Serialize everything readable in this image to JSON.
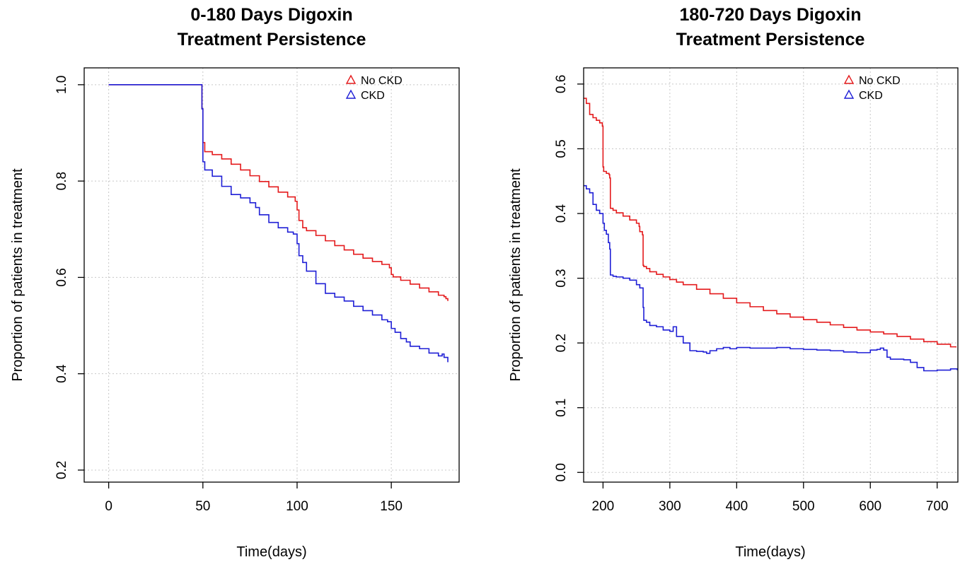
{
  "colors": {
    "no_ckd": "#e41a1c",
    "ckd": "#1f1fd6"
  },
  "chart_data": [
    {
      "type": "line",
      "title_line1": "0-180 Days Digoxin",
      "title_line2": "Treatment Persistence",
      "xlabel": "Time(days)",
      "ylabel": "Proportion of patients in treatment",
      "xlim": [
        -13,
        186
      ],
      "ylim": [
        0.175,
        1.035
      ],
      "xticks": [
        0,
        50,
        100,
        150
      ],
      "xtick_labels": [
        "0",
        "50",
        "100",
        "150"
      ],
      "yticks": [
        0.2,
        0.4,
        0.6,
        0.8,
        1.0
      ],
      "ytick_labels": [
        "0.2",
        "0.4",
        "0.6",
        "0.8",
        "1.0"
      ],
      "grid": true,
      "legend_position": "top-right",
      "legend_marker": "triangle",
      "series": [
        {
          "name": "No CKD",
          "color_key": "no_ckd",
          "x": [
            0,
            49,
            49.5,
            50,
            51,
            55,
            60,
            65,
            70,
            75,
            80,
            85,
            90,
            95,
            99,
            100,
            101,
            103,
            105,
            110,
            115,
            120,
            125,
            130,
            135,
            140,
            145,
            149,
            150,
            151,
            155,
            160,
            165,
            170,
            175,
            178,
            179,
            180
          ],
          "y": [
            1.0,
            1.0,
            0.95,
            0.88,
            0.861,
            0.855,
            0.846,
            0.835,
            0.823,
            0.811,
            0.799,
            0.788,
            0.777,
            0.767,
            0.758,
            0.74,
            0.718,
            0.703,
            0.697,
            0.687,
            0.676,
            0.666,
            0.657,
            0.648,
            0.64,
            0.633,
            0.627,
            0.62,
            0.606,
            0.601,
            0.594,
            0.586,
            0.578,
            0.57,
            0.563,
            0.56,
            0.556,
            0.551
          ]
        },
        {
          "name": "CKD",
          "color_key": "ckd",
          "x": [
            0,
            49,
            49.5,
            50,
            51,
            55,
            60,
            65,
            70,
            75,
            78,
            80,
            85,
            90,
            95,
            98,
            100,
            101,
            103,
            105,
            110,
            115,
            120,
            125,
            130,
            135,
            140,
            145,
            148,
            150,
            152,
            155,
            158,
            160,
            165,
            170,
            175,
            177,
            178,
            180
          ],
          "y": [
            1.0,
            1.0,
            0.95,
            0.84,
            0.823,
            0.81,
            0.789,
            0.772,
            0.765,
            0.755,
            0.745,
            0.73,
            0.714,
            0.703,
            0.694,
            0.69,
            0.67,
            0.645,
            0.631,
            0.613,
            0.587,
            0.567,
            0.559,
            0.551,
            0.54,
            0.531,
            0.522,
            0.512,
            0.508,
            0.494,
            0.486,
            0.473,
            0.466,
            0.457,
            0.452,
            0.443,
            0.437,
            0.441,
            0.434,
            0.424
          ]
        }
      ]
    },
    {
      "type": "line",
      "title_line1": "180-720 Days Digoxin",
      "title_line2": "Treatment Persistence",
      "xlabel": "Time(days)",
      "ylabel": "Proportion of patients in treatment",
      "xlim": [
        171,
        731
      ],
      "ylim": [
        -0.015,
        0.625
      ],
      "xticks": [
        200,
        300,
        400,
        500,
        600,
        700
      ],
      "xtick_labels": [
        "200",
        "300",
        "400",
        "500",
        "600",
        "700"
      ],
      "yticks": [
        0.0,
        0.1,
        0.2,
        0.3,
        0.4,
        0.5,
        0.6
      ],
      "ytick_labels": [
        "0.0",
        "0.1",
        "0.2",
        "0.3",
        "0.4",
        "0.5",
        "0.6"
      ],
      "grid": true,
      "legend_position": "top-right",
      "legend_marker": "triangle",
      "series": [
        {
          "name": "No CKD",
          "color_key": "no_ckd",
          "x": [
            171,
            175,
            180,
            185,
            190,
            195,
            199,
            200,
            201,
            205,
            209,
            210,
            211,
            215,
            220,
            230,
            240,
            250,
            254,
            255,
            259,
            260,
            261,
            265,
            270,
            280,
            290,
            300,
            310,
            320,
            340,
            360,
            380,
            400,
            420,
            440,
            460,
            480,
            500,
            520,
            540,
            560,
            580,
            600,
            620,
            640,
            660,
            680,
            700,
            720,
            728
          ],
          "y": [
            0.578,
            0.57,
            0.553,
            0.548,
            0.544,
            0.54,
            0.535,
            0.472,
            0.465,
            0.462,
            0.46,
            0.455,
            0.408,
            0.405,
            0.401,
            0.396,
            0.39,
            0.385,
            0.38,
            0.372,
            0.367,
            0.32,
            0.318,
            0.315,
            0.31,
            0.306,
            0.302,
            0.298,
            0.294,
            0.29,
            0.283,
            0.276,
            0.269,
            0.262,
            0.256,
            0.25,
            0.245,
            0.24,
            0.236,
            0.232,
            0.228,
            0.224,
            0.22,
            0.217,
            0.214,
            0.21,
            0.206,
            0.202,
            0.198,
            0.194,
            0.193
          ]
        },
        {
          "name": "CKD",
          "color_key": "ckd",
          "x": [
            171,
            175,
            180,
            185,
            190,
            195,
            200,
            202,
            205,
            208,
            210,
            211,
            215,
            220,
            230,
            240,
            250,
            255,
            260,
            261,
            265,
            270,
            280,
            290,
            300,
            305,
            310,
            320,
            330,
            340,
            350,
            355,
            360,
            370,
            380,
            390,
            400,
            420,
            440,
            460,
            480,
            500,
            520,
            540,
            560,
            580,
            600,
            610,
            615,
            620,
            625,
            630,
            650,
            660,
            670,
            680,
            700,
            710,
            720,
            730
          ],
          "y": [
            0.443,
            0.438,
            0.432,
            0.414,
            0.405,
            0.4,
            0.385,
            0.374,
            0.368,
            0.355,
            0.345,
            0.305,
            0.303,
            0.302,
            0.3,
            0.297,
            0.29,
            0.285,
            0.255,
            0.235,
            0.232,
            0.227,
            0.225,
            0.22,
            0.218,
            0.225,
            0.21,
            0.2,
            0.188,
            0.187,
            0.186,
            0.184,
            0.188,
            0.191,
            0.193,
            0.191,
            0.193,
            0.192,
            0.192,
            0.193,
            0.191,
            0.19,
            0.189,
            0.188,
            0.186,
            0.185,
            0.189,
            0.19,
            0.192,
            0.189,
            0.178,
            0.175,
            0.174,
            0.17,
            0.162,
            0.157,
            0.158,
            0.158,
            0.16,
            0.158
          ]
        }
      ]
    }
  ]
}
